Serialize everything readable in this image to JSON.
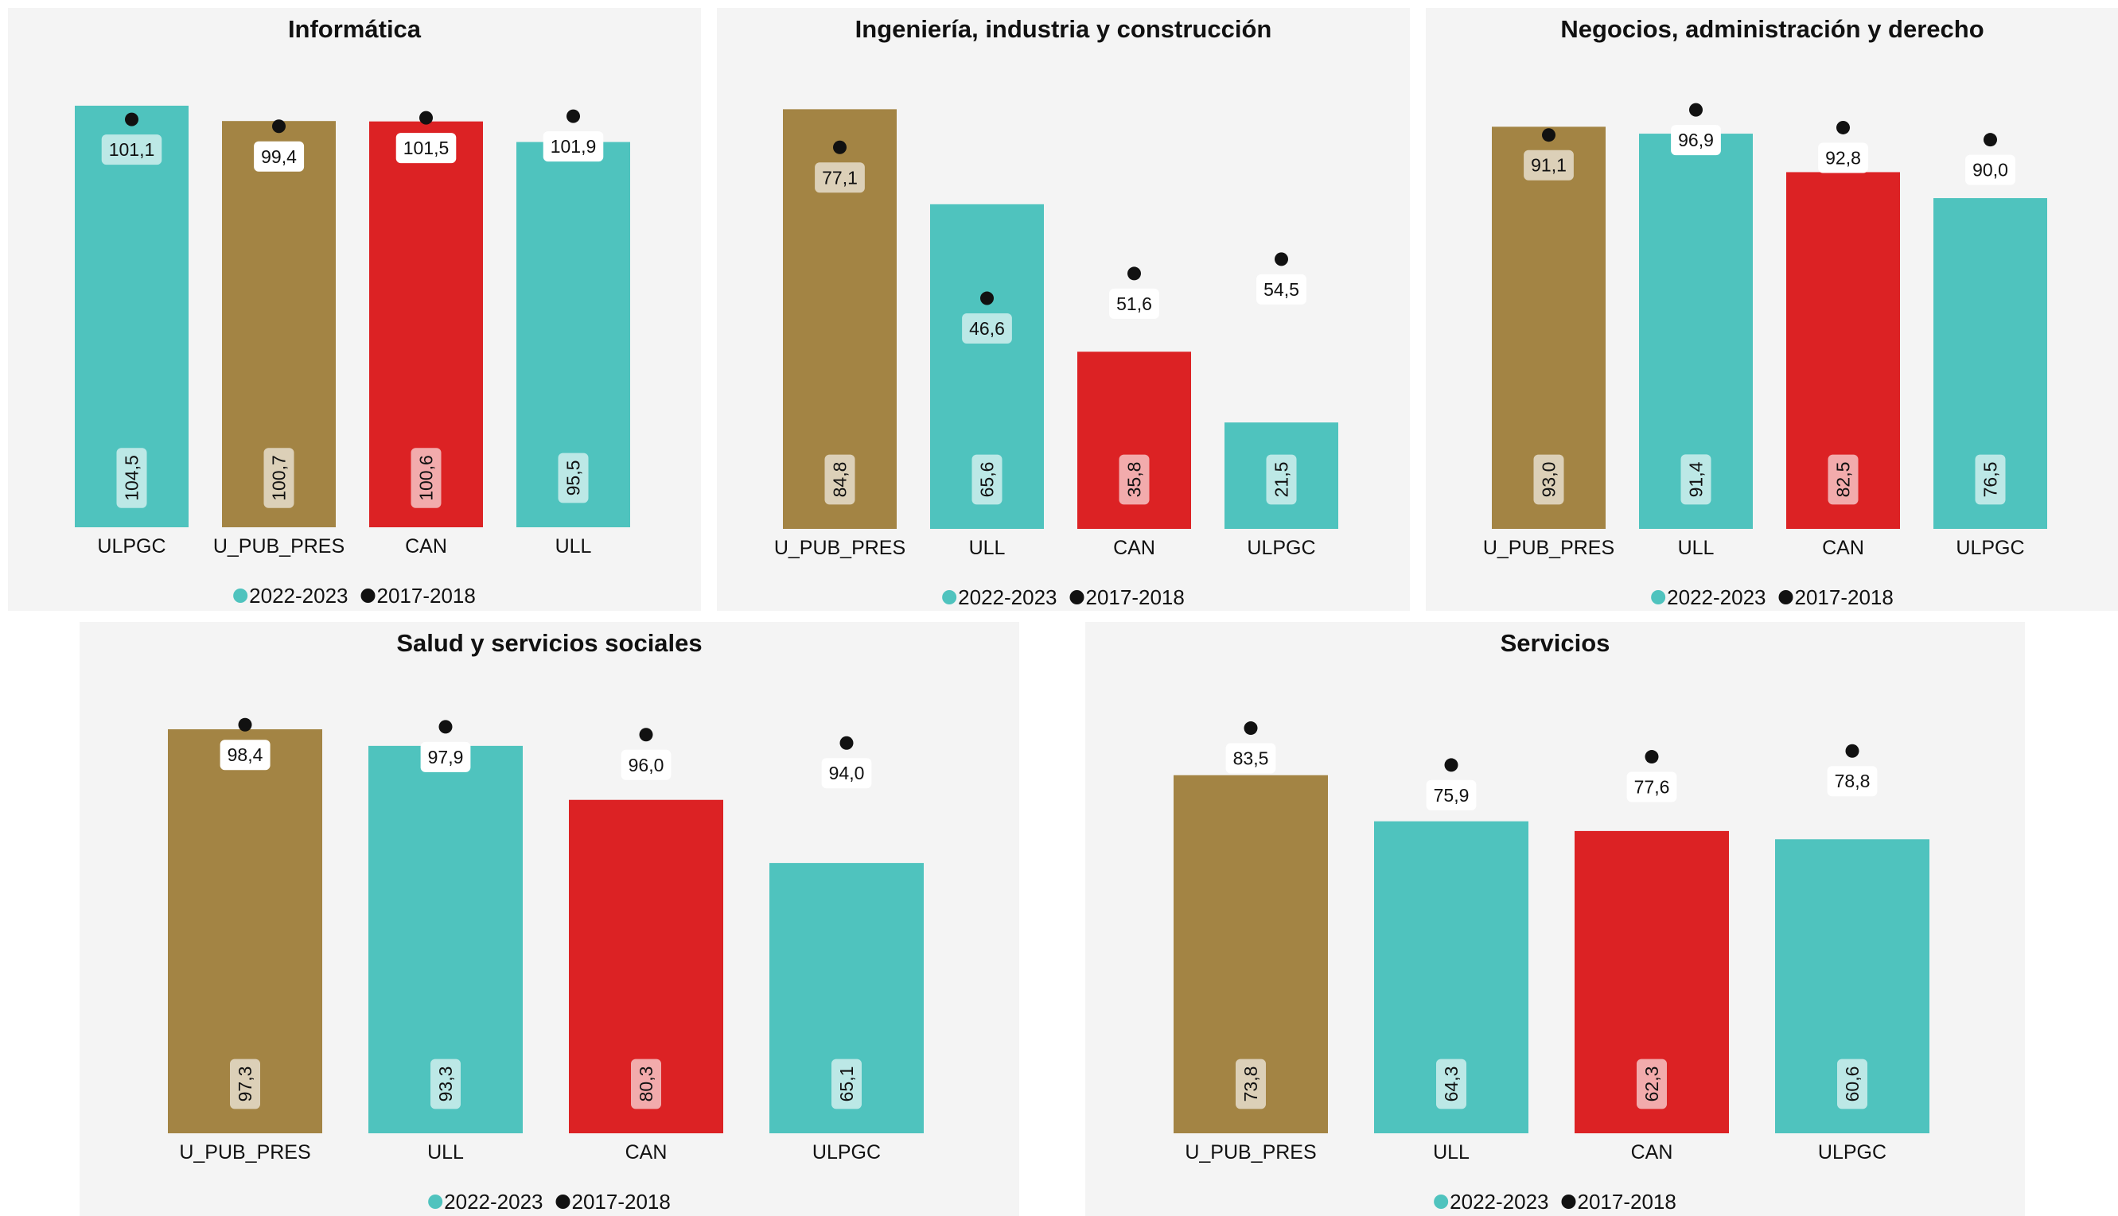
{
  "colors": {
    "teal": "#4fc3be",
    "gold": "#a38444",
    "red": "#dc2224",
    "dot": "#111111",
    "panel_bg": "#f4f4f4"
  },
  "legend": [
    {
      "label": "2022-2023",
      "marker": "circle",
      "color": "#4fc3be"
    },
    {
      "label": "2017-2018",
      "marker": "circle",
      "color": "#111111"
    }
  ],
  "chart_data": [
    {
      "type": "bar",
      "title": "Informática",
      "ylim": [
        0,
        110
      ],
      "categories": [
        "ULPGC",
        "U_PUB_PRES",
        "CAN",
        "ULL"
      ],
      "bar_colors": [
        "#4fc3be",
        "#a38444",
        "#dc2224",
        "#4fc3be"
      ],
      "series": [
        {
          "name": "2022-2023",
          "marker": "bar",
          "values": [
            104.5,
            100.7,
            100.6,
            95.5
          ],
          "labels": [
            "104,5",
            "100,7",
            "100,6",
            "95,5"
          ]
        },
        {
          "name": "2017-2018",
          "marker": "dot",
          "values": [
            101.1,
            99.4,
            101.5,
            101.9
          ],
          "labels": [
            "101,1",
            "99,4",
            "101,5",
            "101,9"
          ]
        }
      ],
      "legend": [
        "2022-2023",
        "2017-2018"
      ]
    },
    {
      "type": "bar",
      "title": "Ingeniería, industria y construcción",
      "ylim": [
        0,
        90
      ],
      "categories": [
        "U_PUB_PRES",
        "ULL",
        "CAN",
        "ULPGC"
      ],
      "bar_colors": [
        "#a38444",
        "#4fc3be",
        "#dc2224",
        "#4fc3be"
      ],
      "series": [
        {
          "name": "2022-2023",
          "marker": "bar",
          "values": [
            84.8,
            65.6,
            35.8,
            21.5
          ],
          "labels": [
            "84,8",
            "65,6",
            "35,8",
            "21,5"
          ]
        },
        {
          "name": "2017-2018",
          "marker": "dot",
          "values": [
            77.1,
            46.6,
            51.6,
            54.5
          ],
          "labels": [
            "77,1",
            "46,6",
            "51,6",
            "54,5"
          ]
        }
      ],
      "legend": [
        "2022-2023",
        "2017-2018"
      ]
    },
    {
      "type": "bar",
      "title": "Negocios, administración y derecho",
      "ylim": [
        0,
        103
      ],
      "categories": [
        "U_PUB_PRES",
        "ULL",
        "CAN",
        "ULPGC"
      ],
      "bar_colors": [
        "#a38444",
        "#4fc3be",
        "#dc2224",
        "#4fc3be"
      ],
      "series": [
        {
          "name": "2022-2023",
          "marker": "bar",
          "values": [
            93.0,
            91.4,
            82.5,
            76.5
          ],
          "labels": [
            "93,0",
            "91,4",
            "82,5",
            "76,5"
          ]
        },
        {
          "name": "2017-2018",
          "marker": "dot",
          "values": [
            91.1,
            96.9,
            92.8,
            90.0
          ],
          "labels": [
            "91,1",
            "96,9",
            "92,8",
            "90,0"
          ]
        }
      ],
      "legend": [
        "2022-2023",
        "2017-2018"
      ]
    },
    {
      "type": "bar",
      "title": "Salud y servicios sociales",
      "ylim": [
        0,
        104
      ],
      "categories": [
        "U_PUB_PRES",
        "ULL",
        "CAN",
        "ULPGC"
      ],
      "bar_colors": [
        "#a38444",
        "#4fc3be",
        "#dc2224",
        "#4fc3be"
      ],
      "series": [
        {
          "name": "2022-2023",
          "marker": "bar",
          "values": [
            97.3,
            93.3,
            80.3,
            65.1
          ],
          "labels": [
            "97,3",
            "93,3",
            "80,3",
            "65,1"
          ]
        },
        {
          "name": "2017-2018",
          "marker": "dot",
          "values": [
            98.4,
            97.9,
            96.0,
            94.0
          ],
          "labels": [
            "98,4",
            "97,9",
            "96,0",
            "94,0"
          ]
        }
      ],
      "legend": [
        "2022-2023",
        "2017-2018"
      ]
    },
    {
      "type": "bar",
      "title": "Servicios",
      "ylim": [
        0,
        89
      ],
      "categories": [
        "U_PUB_PRES",
        "ULL",
        "CAN",
        "ULPGC"
      ],
      "bar_colors": [
        "#a38444",
        "#4fc3be",
        "#dc2224",
        "#4fc3be"
      ],
      "series": [
        {
          "name": "2022-2023",
          "marker": "bar",
          "values": [
            73.8,
            64.3,
            62.3,
            60.6
          ],
          "labels": [
            "73,8",
            "64,3",
            "62,3",
            "60,6"
          ]
        },
        {
          "name": "2017-2018",
          "marker": "dot",
          "values": [
            83.5,
            75.9,
            77.6,
            78.8
          ],
          "labels": [
            "83,5",
            "75,9",
            "77,6",
            "78,8"
          ]
        }
      ],
      "legend": [
        "2022-2023",
        "2017-2018"
      ]
    }
  ]
}
